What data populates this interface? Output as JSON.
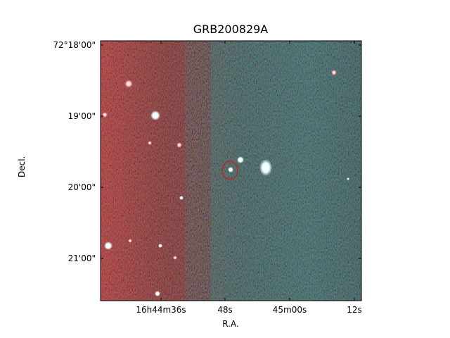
{
  "figure": {
    "title": "GRB200829A",
    "xlabel": "R.A.",
    "ylabel": "Decl.",
    "x_ticks": [
      "16h44m36s",
      "48s",
      "45m00s",
      "12s"
    ],
    "y_ticks": [
      "72°18'00\"",
      "19'00\"",
      "20'00\"",
      "21'00\""
    ]
  },
  "image": {
    "type": "two-colour composite sky image",
    "colors": {
      "left_field": "#b21414",
      "right_field": "#1fb8b8",
      "background": "#050505",
      "marker": "#cc1b1b"
    },
    "marker": "red-ellipse"
  }
}
